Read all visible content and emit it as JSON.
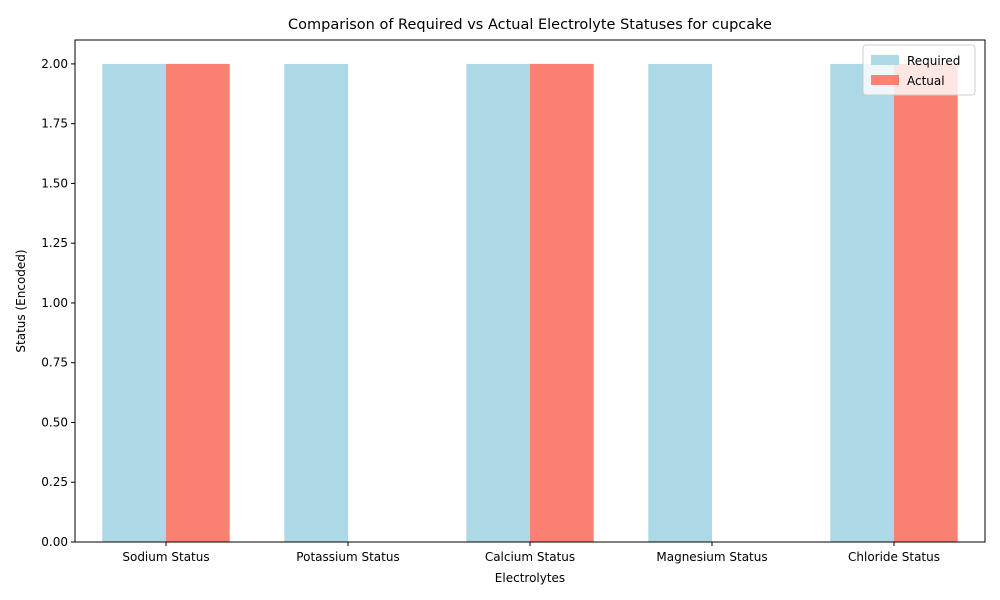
{
  "chart_data": {
    "type": "bar",
    "title": "Comparison of Required vs Actual Electrolyte Statuses for cupcake",
    "xlabel": "Electrolytes",
    "ylabel": "Status (Encoded)",
    "categories": [
      "Sodium Status",
      "Potassium Status",
      "Calcium Status",
      "Magnesium Status",
      "Chloride Status"
    ],
    "series": [
      {
        "name": "Required",
        "color": "#add8e6",
        "values": [
          2,
          2,
          2,
          2,
          2
        ]
      },
      {
        "name": "Actual",
        "color": "#fa8072",
        "values": [
          2,
          0,
          2,
          0,
          2
        ]
      }
    ],
    "ylim": [
      0,
      2.1
    ],
    "yticks": [
      "0.00",
      "0.25",
      "0.50",
      "0.75",
      "1.00",
      "1.25",
      "1.50",
      "1.75",
      "2.00"
    ],
    "grid": false,
    "legend_position": "top-right"
  }
}
